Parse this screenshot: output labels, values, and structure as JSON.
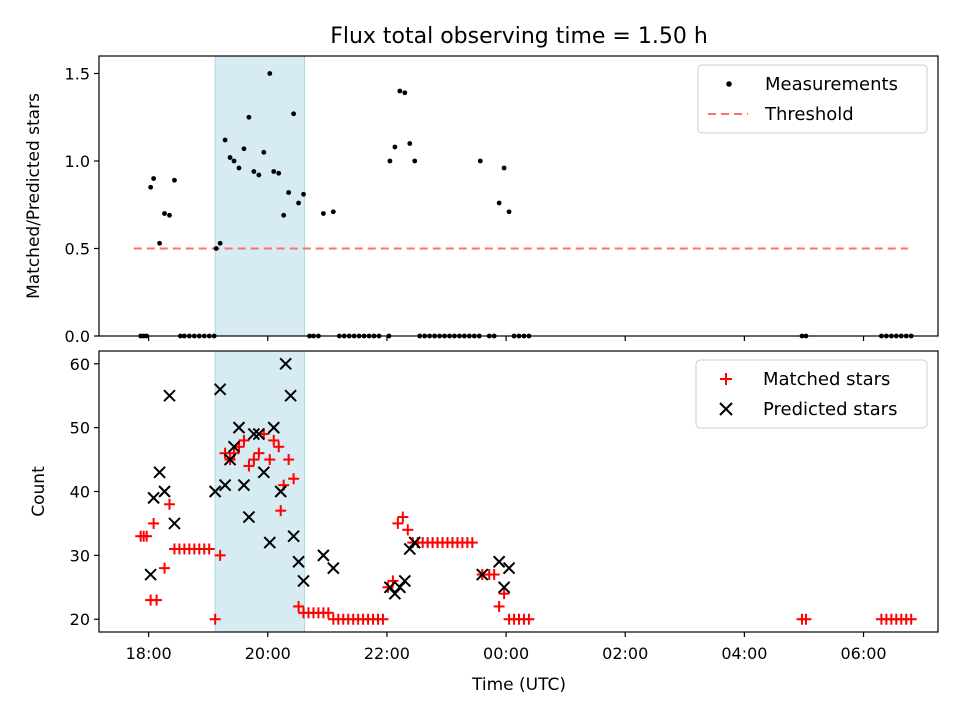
{
  "title": "Flux total observing time = 1.50 h",
  "colors": {
    "measurement": "#000000",
    "threshold": "#ff7070",
    "matched": "#ff0000",
    "predicted": "#000000",
    "highlight": "#add8e6"
  },
  "chart_data": [
    {
      "type": "scatter",
      "ylabel": "Matched/Predicted stars",
      "xlabel": "",
      "ylim": [
        0,
        1.6
      ],
      "yticks": [
        "0.0",
        "0.5",
        "1.0",
        "1.5"
      ],
      "ytick_values": [
        0,
        0.5,
        1.0,
        1.5
      ],
      "highlight_span": [
        "19:07",
        "20:37"
      ],
      "threshold": 0.5,
      "threshold_x": [
        "17:45",
        "06:45"
      ],
      "legend": [
        "Measurements",
        "Threshold"
      ],
      "legend_position": "top-right",
      "series": [
        {
          "name": "Measurements",
          "points": [
            [
              "17:52",
              0
            ],
            [
              "17:55",
              0
            ],
            [
              "17:58",
              0
            ],
            [
              "18:02",
              0.85
            ],
            [
              "18:05",
              0.9
            ],
            [
              "18:11",
              0.53
            ],
            [
              "18:16",
              0.7
            ],
            [
              "18:21",
              0.69
            ],
            [
              "18:26",
              0.89
            ],
            [
              "18:32",
              0
            ],
            [
              "18:36",
              0
            ],
            [
              "18:41",
              0
            ],
            [
              "18:46",
              0
            ],
            [
              "18:51",
              0
            ],
            [
              "18:56",
              0
            ],
            [
              "19:01",
              0
            ],
            [
              "19:06",
              0
            ],
            [
              "19:08",
              0.5
            ],
            [
              "19:12",
              0.53
            ],
            [
              "19:17",
              1.12
            ],
            [
              "19:22",
              1.02
            ],
            [
              "19:26",
              1.0
            ],
            [
              "19:31",
              0.96
            ],
            [
              "19:36",
              1.07
            ],
            [
              "19:41",
              1.25
            ],
            [
              "19:46",
              0.94
            ],
            [
              "19:51",
              0.92
            ],
            [
              "19:56",
              1.05
            ],
            [
              "20:02",
              1.5
            ],
            [
              "20:06",
              0.94
            ],
            [
              "20:11",
              0.93
            ],
            [
              "20:16",
              0.69
            ],
            [
              "20:21",
              0.82
            ],
            [
              "20:26",
              1.27
            ],
            [
              "20:31",
              0.76
            ],
            [
              "20:36",
              0.81
            ],
            [
              "20:42",
              0
            ],
            [
              "20:46",
              0
            ],
            [
              "20:51",
              0
            ],
            [
              "20:56",
              0.7
            ],
            [
              "21:06",
              0.71
            ],
            [
              "21:12",
              0
            ],
            [
              "21:17",
              0
            ],
            [
              "21:22",
              0
            ],
            [
              "21:27",
              0
            ],
            [
              "21:32",
              0
            ],
            [
              "21:37",
              0
            ],
            [
              "21:42",
              0
            ],
            [
              "21:47",
              0
            ],
            [
              "21:52",
              0
            ],
            [
              "22:02",
              0
            ],
            [
              "22:03",
              1.0
            ],
            [
              "22:08",
              1.08
            ],
            [
              "22:13",
              1.4
            ],
            [
              "22:18",
              1.39
            ],
            [
              "22:23",
              1.1
            ],
            [
              "22:28",
              1.0
            ],
            [
              "22:33",
              0
            ],
            [
              "22:38",
              0
            ],
            [
              "22:43",
              0
            ],
            [
              "22:48",
              0
            ],
            [
              "22:53",
              0
            ],
            [
              "22:58",
              0
            ],
            [
              "23:03",
              0
            ],
            [
              "23:08",
              0
            ],
            [
              "23:13",
              0
            ],
            [
              "23:18",
              0
            ],
            [
              "23:23",
              0
            ],
            [
              "23:28",
              0
            ],
            [
              "23:33",
              0
            ],
            [
              "23:34",
              1.0
            ],
            [
              "23:43",
              0
            ],
            [
              "23:48",
              0
            ],
            [
              "23:53",
              0.76
            ],
            [
              "23:58",
              0.96
            ],
            [
              "00:03",
              0.71
            ],
            [
              "00:08",
              0
            ],
            [
              "00:13",
              0
            ],
            [
              "00:18",
              0
            ],
            [
              "00:23",
              0
            ],
            [
              "04:58",
              0
            ],
            [
              "05:02",
              0
            ],
            [
              "06:18",
              0
            ],
            [
              "06:23",
              0
            ],
            [
              "06:28",
              0
            ],
            [
              "06:33",
              0
            ],
            [
              "06:38",
              0
            ],
            [
              "06:43",
              0
            ],
            [
              "06:48",
              0
            ]
          ]
        }
      ]
    },
    {
      "type": "scatter",
      "ylabel": "Count",
      "xlabel": "Time (UTC)",
      "ylim": [
        18,
        62
      ],
      "yticks": [
        "20",
        "30",
        "40",
        "50",
        "60"
      ],
      "ytick_values": [
        20,
        30,
        40,
        50,
        60
      ],
      "xticks": [
        "18:00",
        "20:00",
        "22:00",
        "00:00",
        "02:00",
        "04:00",
        "06:00"
      ],
      "xtick_positions": [
        "18:00",
        "20:00",
        "22:00",
        "00:00",
        "02:00",
        "04:00",
        "06:00"
      ],
      "xlim": [
        "17:10",
        "07:15"
      ],
      "highlight_span": [
        "19:07",
        "20:37"
      ],
      "legend": [
        "Matched stars",
        "Predicted stars"
      ],
      "legend_position": "top-right",
      "series": [
        {
          "name": "Matched stars",
          "points": [
            [
              "17:52",
              33
            ],
            [
              "17:55",
              33
            ],
            [
              "17:58",
              33
            ],
            [
              "18:02",
              23
            ],
            [
              "18:05",
              35
            ],
            [
              "18:08",
              23
            ],
            [
              "18:16",
              28
            ],
            [
              "18:21",
              38
            ],
            [
              "18:26",
              31
            ],
            [
              "18:31",
              31
            ],
            [
              "18:36",
              31
            ],
            [
              "18:41",
              31
            ],
            [
              "18:46",
              31
            ],
            [
              "18:51",
              31
            ],
            [
              "18:56",
              31
            ],
            [
              "19:01",
              31
            ],
            [
              "19:07",
              20
            ],
            [
              "19:12",
              30
            ],
            [
              "19:17",
              46
            ],
            [
              "19:22",
              45
            ],
            [
              "19:26",
              46
            ],
            [
              "19:31",
              47
            ],
            [
              "19:36",
              48
            ],
            [
              "19:41",
              44
            ],
            [
              "19:46",
              45
            ],
            [
              "19:51",
              46
            ],
            [
              "19:56",
              49
            ],
            [
              "20:02",
              45
            ],
            [
              "20:06",
              48
            ],
            [
              "20:11",
              47
            ],
            [
              "20:13",
              37
            ],
            [
              "20:16",
              41
            ],
            [
              "20:21",
              45
            ],
            [
              "20:26",
              42
            ],
            [
              "20:31",
              22
            ],
            [
              "20:36",
              21
            ],
            [
              "20:41",
              21
            ],
            [
              "20:46",
              21
            ],
            [
              "20:51",
              21
            ],
            [
              "20:56",
              21
            ],
            [
              "21:01",
              21
            ],
            [
              "21:06",
              20
            ],
            [
              "21:11",
              20
            ],
            [
              "21:16",
              20
            ],
            [
              "21:21",
              20
            ],
            [
              "21:26",
              20
            ],
            [
              "21:31",
              20
            ],
            [
              "21:36",
              20
            ],
            [
              "21:41",
              20
            ],
            [
              "21:46",
              20
            ],
            [
              "21:51",
              20
            ],
            [
              "21:56",
              20
            ],
            [
              "22:01",
              25
            ],
            [
              "22:06",
              26
            ],
            [
              "22:11",
              35
            ],
            [
              "22:16",
              36
            ],
            [
              "22:21",
              34
            ],
            [
              "22:26",
              32
            ],
            [
              "22:31",
              32
            ],
            [
              "22:36",
              32
            ],
            [
              "22:41",
              32
            ],
            [
              "22:46",
              32
            ],
            [
              "22:51",
              32
            ],
            [
              "22:56",
              32
            ],
            [
              "23:01",
              32
            ],
            [
              "23:06",
              32
            ],
            [
              "23:11",
              32
            ],
            [
              "23:16",
              32
            ],
            [
              "23:21",
              32
            ],
            [
              "23:26",
              32
            ],
            [
              "23:36",
              27
            ],
            [
              "23:43",
              27
            ],
            [
              "23:48",
              27
            ],
            [
              "23:53",
              22
            ],
            [
              "23:58",
              24
            ],
            [
              "00:03",
              20
            ],
            [
              "00:08",
              20
            ],
            [
              "00:13",
              20
            ],
            [
              "00:18",
              20
            ],
            [
              "00:23",
              20
            ],
            [
              "04:58",
              20
            ],
            [
              "05:02",
              20
            ],
            [
              "06:18",
              20
            ],
            [
              "06:23",
              20
            ],
            [
              "06:28",
              20
            ],
            [
              "06:33",
              20
            ],
            [
              "06:38",
              20
            ],
            [
              "06:43",
              20
            ],
            [
              "06:48",
              20
            ]
          ]
        },
        {
          "name": "Predicted stars",
          "points": [
            [
              "18:02",
              27
            ],
            [
              "18:05",
              39
            ],
            [
              "18:11",
              43
            ],
            [
              "18:16",
              40
            ],
            [
              "18:21",
              55
            ],
            [
              "18:26",
              35
            ],
            [
              "19:07",
              40
            ],
            [
              "19:12",
              56
            ],
            [
              "19:17",
              41
            ],
            [
              "19:22",
              45
            ],
            [
              "19:26",
              47
            ],
            [
              "19:31",
              50
            ],
            [
              "19:36",
              41
            ],
            [
              "19:41",
              36
            ],
            [
              "19:46",
              49
            ],
            [
              "19:51",
              49
            ],
            [
              "19:56",
              43
            ],
            [
              "20:02",
              32
            ],
            [
              "20:06",
              50
            ],
            [
              "20:13",
              40
            ],
            [
              "20:18",
              60
            ],
            [
              "20:23",
              55
            ],
            [
              "20:26",
              33
            ],
            [
              "20:31",
              29
            ],
            [
              "20:36",
              26
            ],
            [
              "20:56",
              30
            ],
            [
              "21:06",
              28
            ],
            [
              "22:03",
              25
            ],
            [
              "22:08",
              24
            ],
            [
              "22:13",
              25
            ],
            [
              "22:18",
              26
            ],
            [
              "22:23",
              31
            ],
            [
              "22:28",
              32
            ],
            [
              "23:36",
              27
            ],
            [
              "23:53",
              29
            ],
            [
              "23:58",
              25
            ],
            [
              "00:03",
              28
            ]
          ]
        }
      ]
    }
  ]
}
